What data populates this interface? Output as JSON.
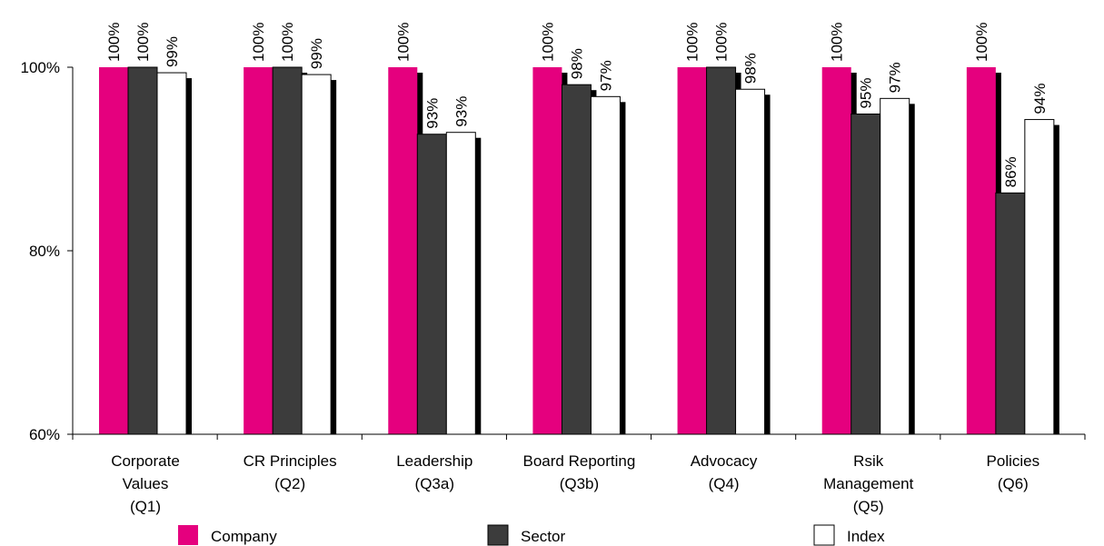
{
  "chart_data": {
    "type": "bar",
    "title": "",
    "xlabel": "",
    "ylabel": "",
    "ylim": [
      60,
      100
    ],
    "yticks": [
      {
        "value": 60,
        "label": "60%"
      },
      {
        "value": 80,
        "label": "80%"
      },
      {
        "value": 100,
        "label": "100%"
      }
    ],
    "grid": false,
    "legend_position": "bottom",
    "categories": [
      [
        "Corporate",
        "Values",
        "(Q1)"
      ],
      [
        "CR Principles",
        "(Q2)"
      ],
      [
        "Leadership",
        "(Q3a)"
      ],
      [
        "Board Reporting",
        "(Q3b)"
      ],
      [
        "Advocacy",
        "(Q4)"
      ],
      [
        "Rsik",
        "Management",
        "(Q5)"
      ],
      [
        "Policies",
        "(Q6)"
      ]
    ],
    "series": [
      {
        "name": "Company",
        "color": "#e5007e",
        "values": [
          100,
          100,
          100,
          100,
          100,
          100,
          100
        ],
        "labels": [
          "100%",
          "100%",
          "100%",
          "100%",
          "100%",
          "100%",
          "100%"
        ]
      },
      {
        "name": "Sector",
        "color": "#3c3c3c",
        "values": [
          100,
          100,
          92.7,
          98.1,
          100,
          94.9,
          86.3
        ],
        "labels": [
          "100%",
          "100%",
          "93%",
          "98%",
          "100%",
          "95%",
          "86%"
        ]
      },
      {
        "name": "Index",
        "color": "#ffffff",
        "values": [
          99.4,
          99.2,
          92.9,
          96.8,
          97.6,
          96.6,
          94.3
        ],
        "labels": [
          "99%",
          "99%",
          "93%",
          "97%",
          "98%",
          "97%",
          "94%"
        ]
      }
    ]
  }
}
